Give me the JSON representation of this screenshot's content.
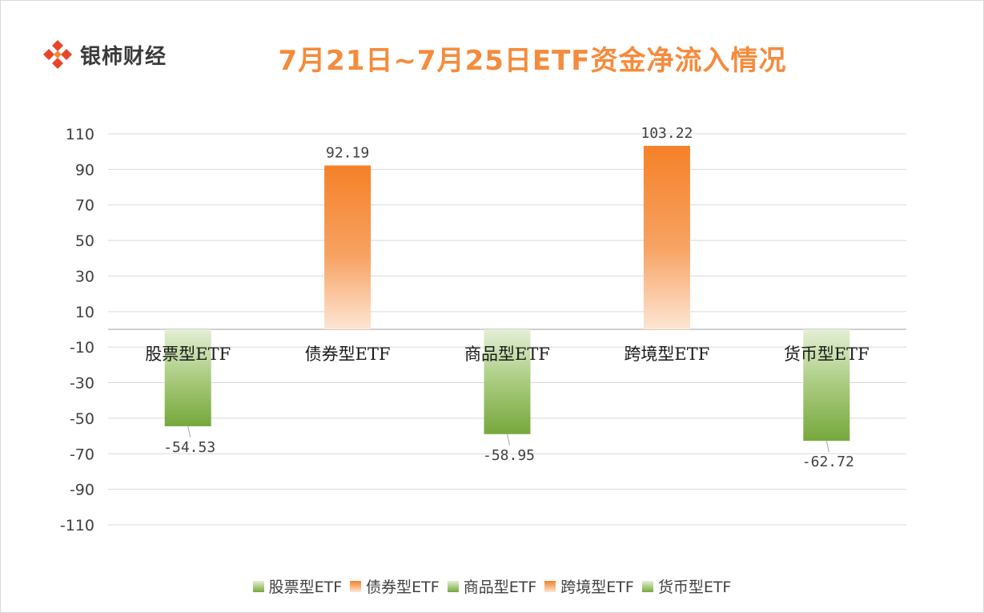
{
  "header": {
    "brand": "银柿财经",
    "title": "7月21日~7月25日ETF资金净流入情况"
  },
  "colors": {
    "title": "#f58b3c",
    "positive": "#f58b3c",
    "negative": "#7fae45",
    "grid": "#d9d9d9"
  },
  "chart_data": {
    "type": "bar",
    "title": "7月21日~7月25日ETF资金净流入情况",
    "categories": [
      "股票型ETF",
      "债券型ETF",
      "商品型ETF",
      "跨境型ETF",
      "货币型ETF"
    ],
    "values": [
      -54.53,
      92.19,
      -58.95,
      103.22,
      -62.72
    ],
    "value_labels": [
      "-54.53",
      "92.19",
      "-58.95",
      "103.22",
      "-62.72"
    ],
    "yticks": [
      110,
      90,
      70,
      50,
      30,
      10,
      -10,
      -30,
      -50,
      -70,
      -90,
      -110
    ],
    "ylim": [
      -110,
      110
    ],
    "grid": true,
    "legend": "bottom",
    "legend_entries": [
      "股票型ETF",
      "债券型ETF",
      "商品型ETF",
      "跨境型ETF",
      "货币型ETF"
    ]
  }
}
